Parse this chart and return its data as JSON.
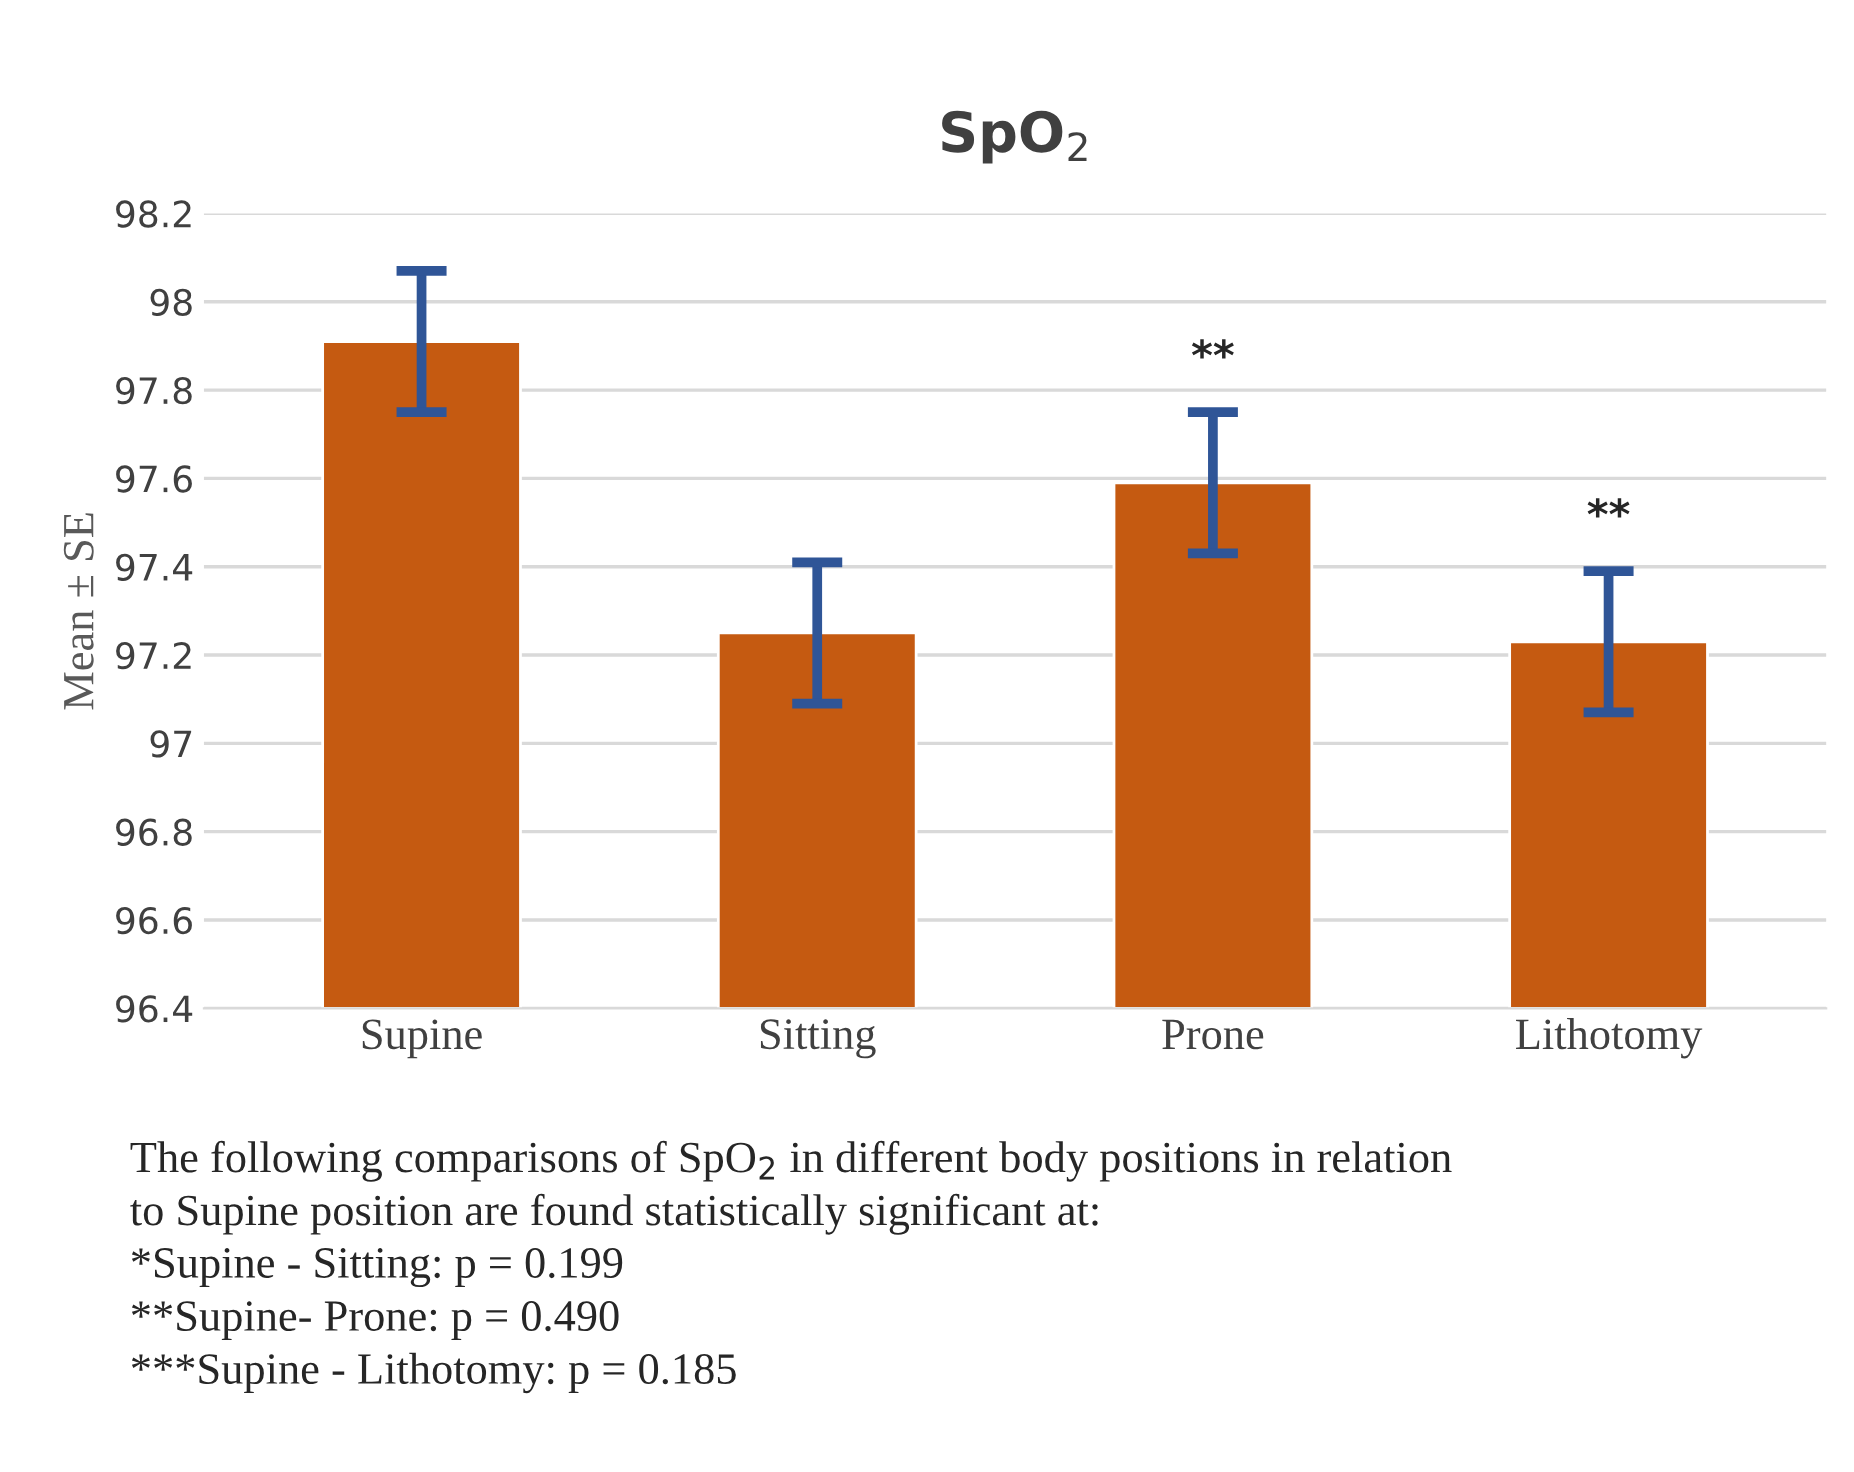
{
  "chart_data": {
    "type": "bar",
    "title": "SpO$_{2}$",
    "ylabel": "Mean ± SE",
    "categories": [
      "Supine",
      "Sitting",
      "Prone",
      "Lithotomy"
    ],
    "values": [
      97.91,
      97.25,
      97.59,
      97.23
    ],
    "errors": [
      0.16,
      0.16,
      0.16,
      0.16
    ],
    "color": "#c55a11",
    "ylim": [
      96.4,
      98.2
    ],
    "yticks": [
      96.4,
      96.6,
      96.8,
      97,
      97.2,
      97.4,
      97.6,
      97.8,
      98,
      98.2
    ],
    "grid": "y",
    "annotations": [
      {
        "text": "**",
        "x": "Prone",
        "y": 97.75
      },
      {
        "text": "**",
        "x": "Lithotomy",
        "y": 97.39
      },
      "The following comparisons of SpO$_{2}$ in different body positions in relation",
      "to Supine position are found statistically significant at:",
      "*Supine - Sitting: p = 0.199",
      "**Supine- Prone: p = 0.490",
      "***Supine - Lithotomy: p = 0.185"
    ]
  }
}
